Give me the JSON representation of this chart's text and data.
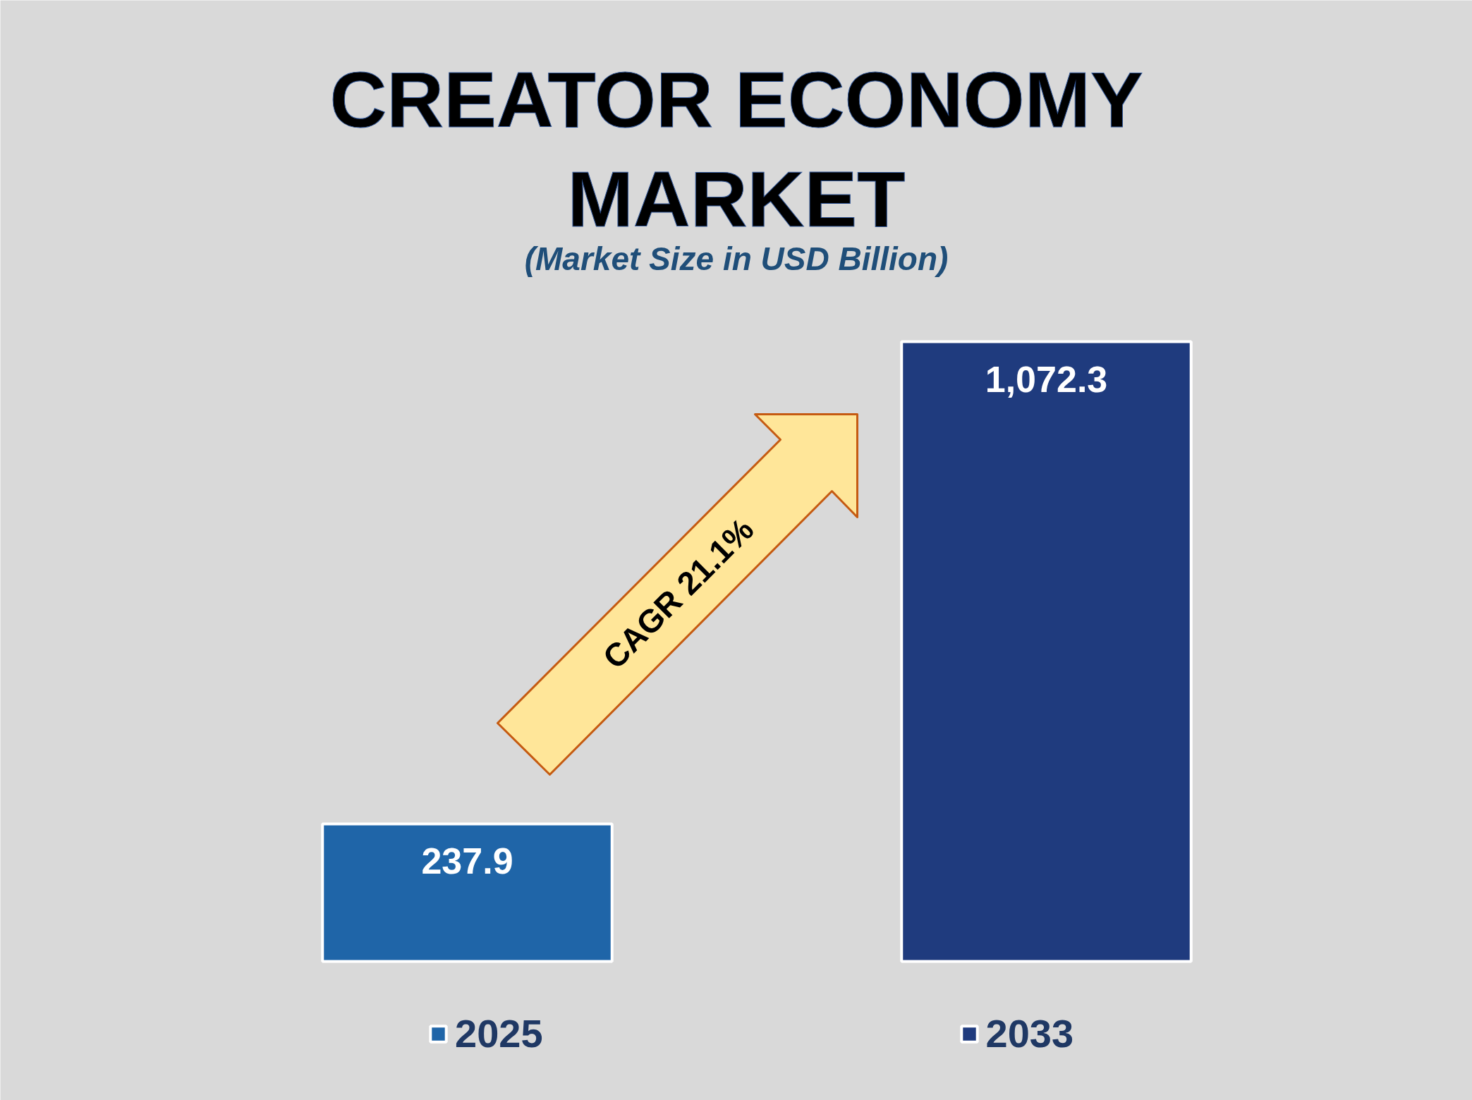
{
  "chart_data": {
    "type": "bar",
    "title": "CREATOR ECONOMY MARKET",
    "subtitle": "(Market Size in USD Billion)",
    "categories": [
      null,
      null
    ],
    "stacked": true,
    "series": [
      {
        "name": "2025",
        "color": "#1f65a8",
        "values": [
          237.9,
          null
        ],
        "value_labels": [
          "237.9",
          null
        ]
      },
      {
        "name": "2033",
        "color": "#1f3b7e",
        "values": [
          null,
          1072.3
        ],
        "value_labels": [
          null,
          "1,072.3"
        ]
      }
    ],
    "legend": "bottom",
    "tick_labels": false,
    "annotations": [
      "CAGR 21.1%"
    ]
  }
}
